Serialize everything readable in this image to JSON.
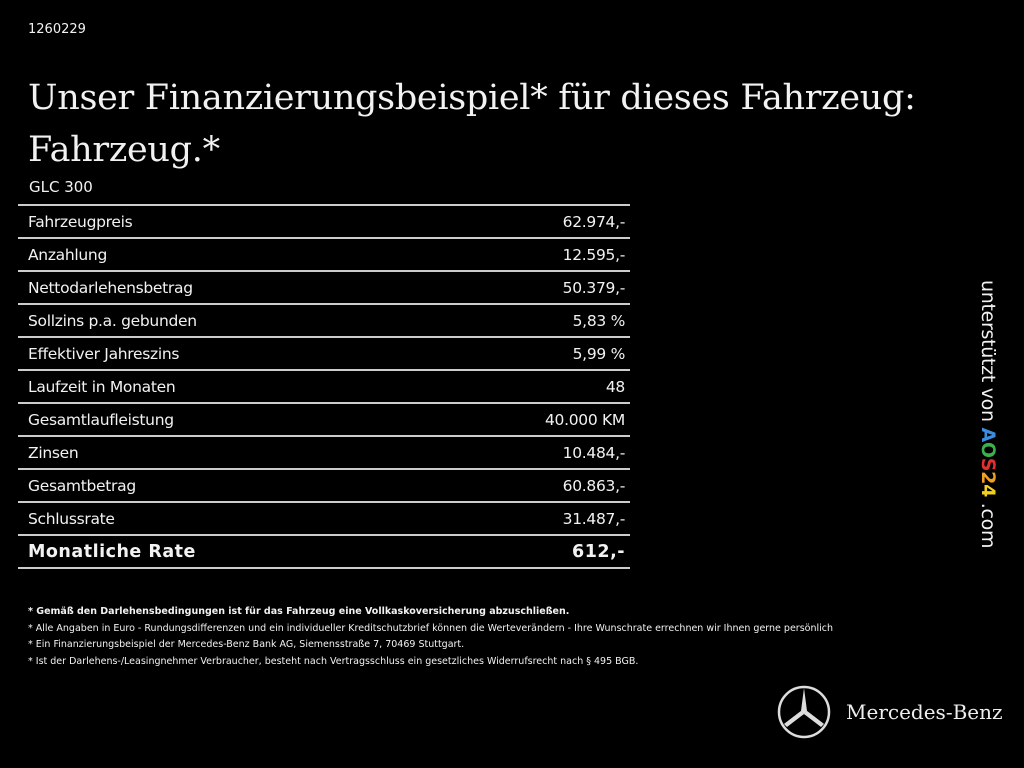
{
  "code": "1260229",
  "title": [
    "Unser Finanzierungsbeispiel* für dieses Fahrzeug:",
    "Fahrzeug.*"
  ],
  "model": "GLC 300",
  "rows": [
    {
      "label": "Fahrzeugpreis",
      "value": "62.974,-"
    },
    {
      "label": "Anzahlung",
      "value": "12.595,-"
    },
    {
      "label": "Nettodarlehensbetrag",
      "value": "50.379,-"
    },
    {
      "label": "Sollzins p.a. gebunden",
      "value": "5,83 %"
    },
    {
      "label": "Effektiver Jahreszins",
      "value": "5,99 %"
    },
    {
      "label": "Laufzeit in Monaten",
      "value": "48"
    },
    {
      "label": "Gesamtlaufleistung",
      "value": "40.000 KM"
    },
    {
      "label": "Zinsen",
      "value": "10.484,-"
    },
    {
      "label": "Gesamtbetrag",
      "value": "60.863,-"
    },
    {
      "label": "Schlussrate",
      "value": "31.487,-"
    },
    {
      "label": "Monatliche Rate",
      "value": "612,-"
    }
  ],
  "notes": [
    "* Gemäß den Darlehensbedingungen ist für das Fahrzeug eine Vollkaskoversicherung abzuschließen.",
    "* Alle Angaben in Euro - Rundungsdifferenzen und ein individueller Kreditschutzbrief können die Werteverändern - Ihre Wunschrate errechnen wir Ihnen gerne persönlich",
    "* Ein Finanzierungsbeispiel der Mercedes-Benz Bank AG, Siemensstraße 7, 70469 Stuttgart.",
    "* Ist der Darlehens-/Leasingnehmer Verbraucher, besteht nach Vertragsschluss ein gesetzliches Widerrufsrecht nach § 495 BGB."
  ],
  "support": {
    "prefix": "unterstützt von ",
    "brand": [
      "A",
      "O",
      "S",
      "2",
      "4"
    ],
    "suffix": ".com",
    "brand_colors": [
      "#3a8ee0",
      "#3cb04a",
      "#e03030",
      "#f0a020",
      "#f2d020"
    ]
  },
  "logo": {
    "text": "Mercedes-Benz",
    "icon": "mercedes-star-icon"
  }
}
